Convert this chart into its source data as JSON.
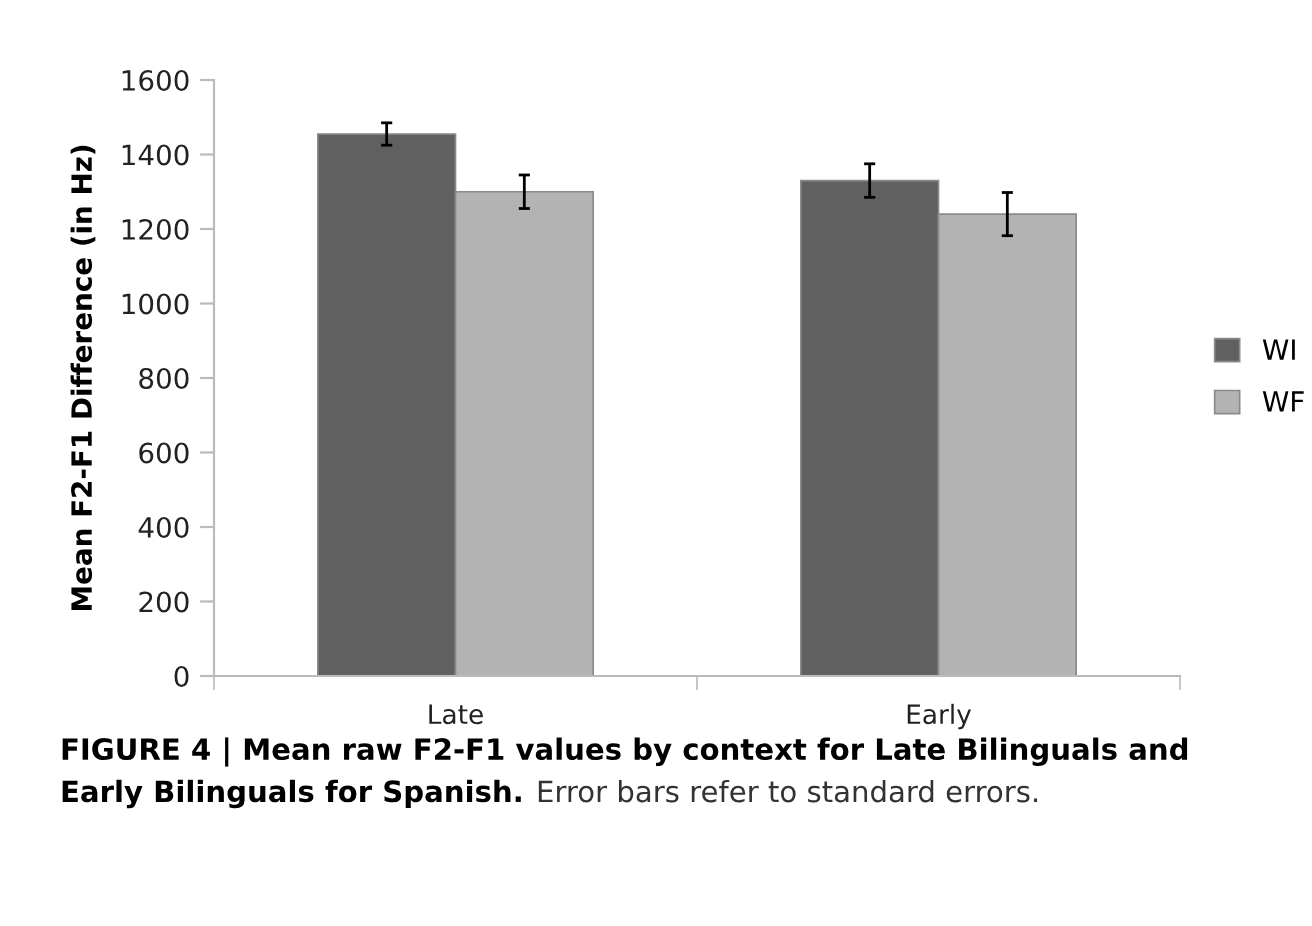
{
  "chart_data": {
    "type": "bar",
    "ylabel": "Mean F2-F1 Difference (in Hz)",
    "categories": [
      "Late",
      "Early"
    ],
    "series": [
      {
        "name": "WI",
        "color": "#606060",
        "values": [
          1455,
          1330
        ],
        "errors": [
          30,
          45
        ]
      },
      {
        "name": "WF",
        "color": "#b3b3b3",
        "values": [
          1300,
          1240
        ],
        "errors": [
          45,
          58
        ]
      }
    ],
    "ylim": [
      0,
      1600
    ],
    "yticks": [
      0,
      200,
      400,
      600,
      800,
      1000,
      1200,
      1400,
      1600
    ],
    "grid": false,
    "legend": "right",
    "annotations": [
      "FIGURE 4 | Mean raw F2-F1 values by context for Late Bilinguals and",
      "Early Bilinguals for Spanish.",
      "Error bars refer to standard errors."
    ]
  }
}
